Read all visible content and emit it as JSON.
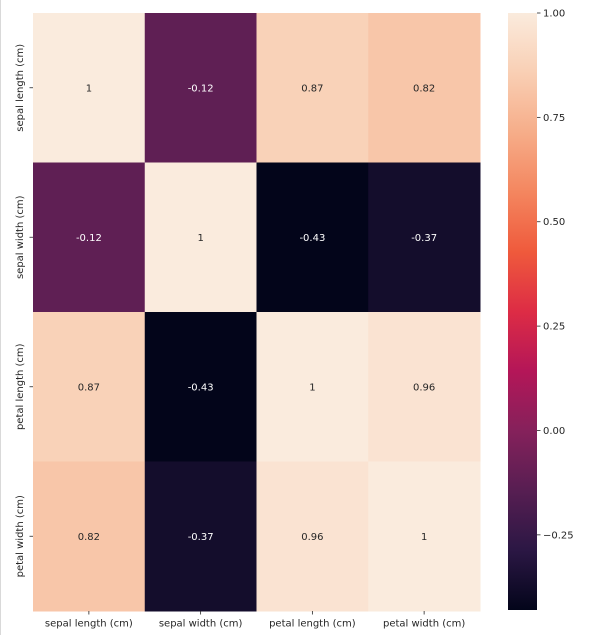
{
  "chart_data": {
    "type": "heatmap",
    "title": "",
    "xlabel": "",
    "ylabel": "",
    "x_categories": [
      "sepal length (cm)",
      "sepal width (cm)",
      "petal length (cm)",
      "petal width (cm)"
    ],
    "y_categories": [
      "sepal length (cm)",
      "sepal width (cm)",
      "petal length (cm)",
      "petal width (cm)"
    ],
    "values": [
      [
        1,
        -0.12,
        0.87,
        0.82
      ],
      [
        -0.12,
        1,
        -0.43,
        -0.37
      ],
      [
        0.87,
        -0.43,
        1,
        0.96
      ],
      [
        0.82,
        -0.37,
        0.96,
        1
      ]
    ],
    "annotations": [
      [
        "1",
        "-0.12",
        "0.87",
        "0.82"
      ],
      [
        "-0.12",
        "1",
        "-0.43",
        "-0.37"
      ],
      [
        "0.87",
        "-0.43",
        "1",
        "0.96"
      ],
      [
        "0.82",
        "-0.37",
        "0.96",
        "1"
      ]
    ],
    "colormap": "rocket",
    "vmin": -0.43,
    "vmax": 1.0,
    "colorbar": {
      "ticks": [
        1.0,
        0.75,
        0.5,
        0.25,
        0.0,
        -0.25
      ],
      "tick_labels": [
        "1.00",
        "0.75",
        "0.50",
        "0.25",
        "0.00",
        "−0.25"
      ]
    }
  }
}
